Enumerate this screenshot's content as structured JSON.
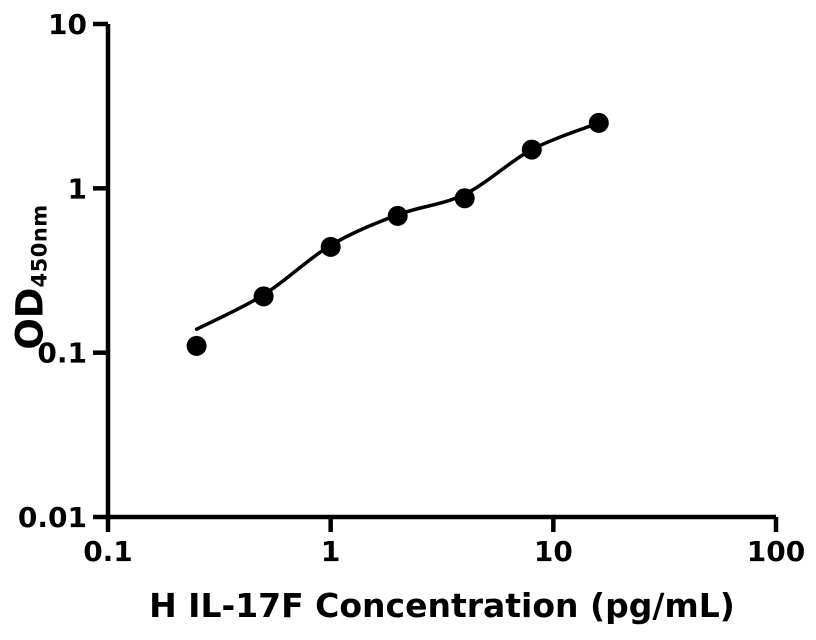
{
  "colors": {
    "foreground": "#000000",
    "background": "#ffffff"
  },
  "chart_data": {
    "type": "scatter",
    "title": "",
    "xlabel": "H IL-17F Concentration (pg/mL)",
    "ylabel_main": "OD",
    "ylabel_subscript": "450nm",
    "x_scale": "log",
    "y_scale": "log",
    "xlim": [
      0.1,
      100
    ],
    "ylim": [
      0.01,
      10
    ],
    "x_tick_values": [
      0.1,
      1,
      10,
      100
    ],
    "x_tick_labels": [
      "0.1",
      "1",
      "10",
      "100"
    ],
    "y_tick_values": [
      0.01,
      0.1,
      1,
      10
    ],
    "y_tick_labels": [
      "0.01",
      "0.1",
      "1",
      "10"
    ],
    "grid": false,
    "legend": null,
    "series": [
      {
        "name": "standard-points",
        "marker": "circle",
        "color": "#000000",
        "x": [
          0.25,
          0.5,
          1,
          2,
          4,
          8,
          16
        ],
        "y": [
          0.11,
          0.22,
          0.44,
          0.68,
          0.87,
          1.72,
          2.5
        ]
      }
    ],
    "fit_line": {
      "name": "fitted-curve",
      "color": "#000000",
      "points": [
        [
          0.25,
          0.139
        ],
        [
          0.5,
          0.225
        ],
        [
          1,
          0.45
        ],
        [
          2,
          0.69
        ],
        [
          4,
          0.92
        ],
        [
          8,
          1.72
        ],
        [
          16,
          2.5
        ]
      ]
    }
  }
}
